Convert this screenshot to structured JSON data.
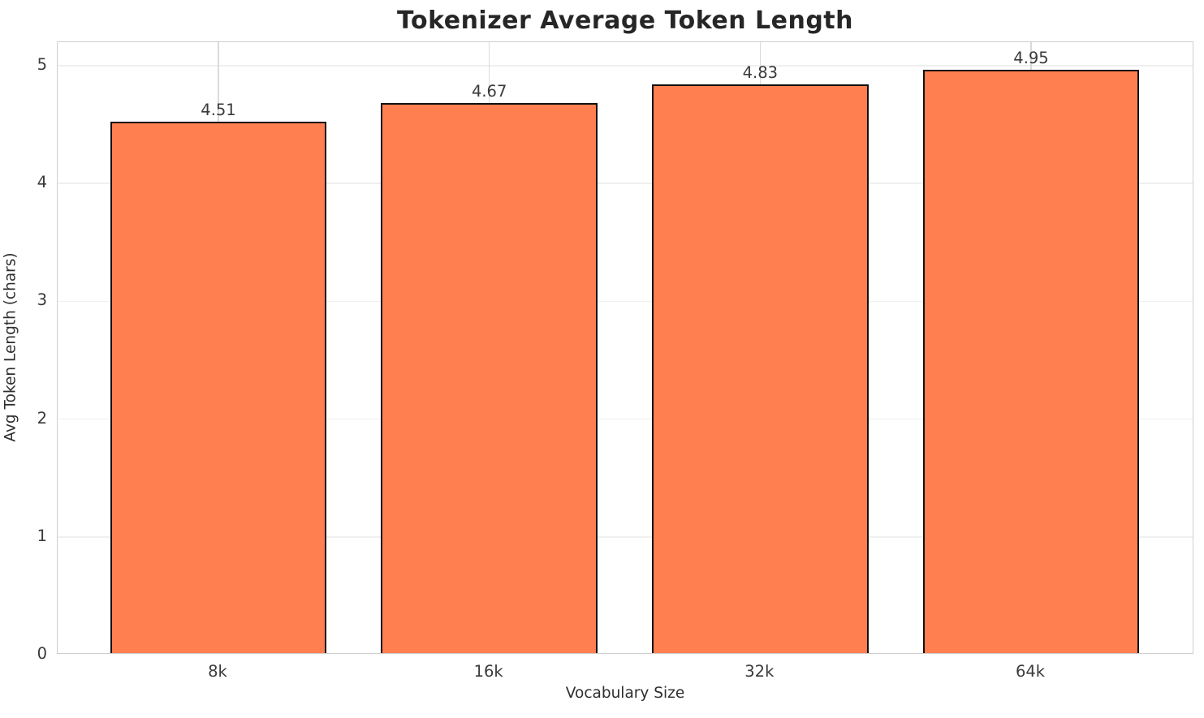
{
  "chart_data": {
    "type": "bar",
    "title": "Tokenizer Average Token Length",
    "xlabel": "Vocabulary Size",
    "ylabel": "Avg Token Length (chars)",
    "categories": [
      "8k",
      "16k",
      "32k",
      "64k"
    ],
    "values": [
      4.51,
      4.67,
      4.83,
      4.95
    ],
    "value_labels": [
      "4.51",
      "4.67",
      "4.83",
      "4.95"
    ],
    "yticks": [
      0,
      1,
      2,
      3,
      4,
      5
    ],
    "ytick_labels": [
      "0",
      "1",
      "2",
      "3",
      "4",
      "5"
    ],
    "ylim": [
      0,
      5.2
    ],
    "grid": true,
    "legend": "none",
    "bar_color": "#FF7F50",
    "bar_edge_color": "#111111",
    "hgrid_color": "#efefef",
    "vgrid_color": "#dadada",
    "spine_color": "#cfcfcf",
    "title_color": "#262626",
    "tick_label_color": "#3a3a3a"
  }
}
